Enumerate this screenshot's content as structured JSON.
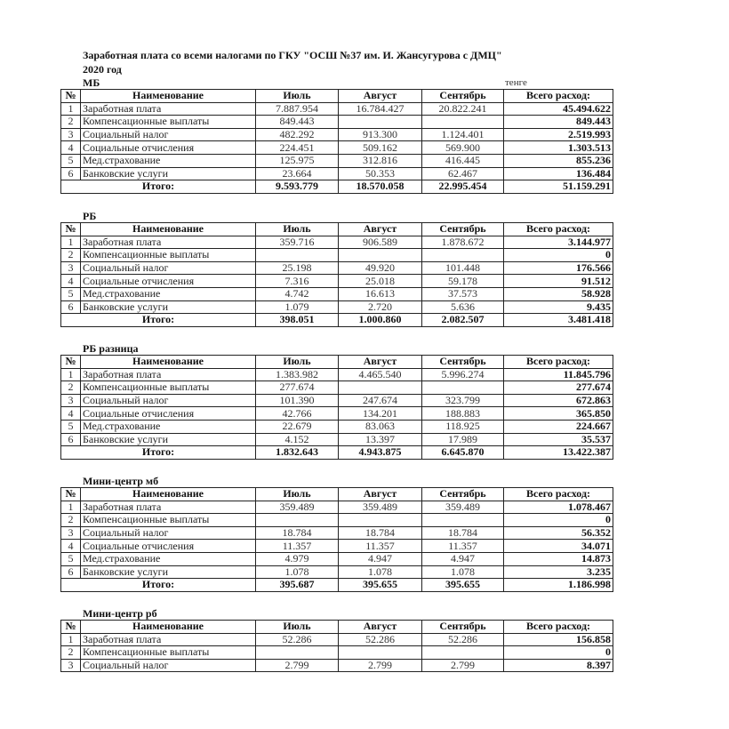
{
  "title_line1": "Заработная плата со всеми налогами по ГКУ \"ОСШ №37 им. И. Жансугурова с ДМЦ\"",
  "title_line2": "2020 год",
  "unit": "тенге",
  "headers": [
    "№",
    "Наименование",
    "Июль",
    "Август",
    "Сентябрь",
    "Всего расход:"
  ],
  "total_label": "Итого:",
  "sections": [
    {
      "label": "МБ",
      "rows": [
        [
          "1",
          "Заработная плата",
          "7.887.954",
          "16.784.427",
          "20.822.241",
          "45.494.622"
        ],
        [
          "2",
          "Компенсационные выплаты",
          "849.443",
          "",
          "",
          "849.443"
        ],
        [
          "3",
          "Социальный налог",
          "482.292",
          "913.300",
          "1.124.401",
          "2.519.993"
        ],
        [
          "4",
          "Социальные отчисления",
          "224.451",
          "509.162",
          "569.900",
          "1.303.513"
        ],
        [
          "5",
          "Мед.страхование",
          "125.975",
          "312.816",
          "416.445",
          "855.236"
        ],
        [
          "6",
          "Банковские услуги",
          "23.664",
          "50.353",
          "62.467",
          "136.484"
        ]
      ],
      "total": [
        "9.593.779",
        "18.570.058",
        "22.995.454",
        "51.159.291"
      ]
    },
    {
      "label": "РБ",
      "rows": [
        [
          "1",
          "Заработная плата",
          "359.716",
          "906.589",
          "1.878.672",
          "3.144.977"
        ],
        [
          "2",
          "Компенсационные выплаты",
          "",
          "",
          "",
          "0"
        ],
        [
          "3",
          "Социальный налог",
          "25.198",
          "49.920",
          "101.448",
          "176.566"
        ],
        [
          "4",
          "Социальные отчисления",
          "7.316",
          "25.018",
          "59.178",
          "91.512"
        ],
        [
          "5",
          "Мед.страхование",
          "4.742",
          "16.613",
          "37.573",
          "58.928"
        ],
        [
          "6",
          "Банковские услуги",
          "1.079",
          "2.720",
          "5.636",
          "9.435"
        ]
      ],
      "total": [
        "398.051",
        "1.000.860",
        "2.082.507",
        "3.481.418"
      ]
    },
    {
      "label": "РБ разница",
      "rows": [
        [
          "1",
          "Заработная плата",
          "1.383.982",
          "4.465.540",
          "5.996.274",
          "11.845.796"
        ],
        [
          "2",
          "Компенсационные выплаты",
          "277.674",
          "",
          "",
          "277.674"
        ],
        [
          "3",
          "Социальный налог",
          "101.390",
          "247.674",
          "323.799",
          "672.863"
        ],
        [
          "4",
          "Социальные отчисления",
          "42.766",
          "134.201",
          "188.883",
          "365.850"
        ],
        [
          "5",
          "Мед.страхование",
          "22.679",
          "83.063",
          "118.925",
          "224.667"
        ],
        [
          "6",
          "Банковские услуги",
          "4.152",
          "13.397",
          "17.989",
          "35.537"
        ]
      ],
      "total": [
        "1.832.643",
        "4.943.875",
        "6.645.870",
        "13.422.387"
      ]
    },
    {
      "label": "Мини-центр мб",
      "rows": [
        [
          "1",
          "Заработная плата",
          "359.489",
          "359.489",
          "359.489",
          "1.078.467"
        ],
        [
          "2",
          "Компенсационные выплаты",
          "",
          "",
          "",
          "0"
        ],
        [
          "3",
          "Социальный налог",
          "18.784",
          "18.784",
          "18.784",
          "56.352"
        ],
        [
          "4",
          "Социальные отчисления",
          "11.357",
          "11.357",
          "11.357",
          "34.071"
        ],
        [
          "5",
          "Мед.страхование",
          "4.979",
          "4.947",
          "4.947",
          "14.873"
        ],
        [
          "6",
          "Банковские услуги",
          "1.078",
          "1.078",
          "1.078",
          "3.235"
        ]
      ],
      "total": [
        "395.687",
        "395.655",
        "395.655",
        "1.186.998"
      ]
    },
    {
      "label": "Мини-центр рб",
      "rows": [
        [
          "1",
          "Заработная плата",
          "52.286",
          "52.286",
          "52.286",
          "156.858"
        ],
        [
          "2",
          "Компенсационные выплаты",
          "",
          "",
          "",
          "0"
        ],
        [
          "3",
          "Социальный налог",
          "2.799",
          "2.799",
          "2.799",
          "8.397"
        ]
      ]
    }
  ]
}
